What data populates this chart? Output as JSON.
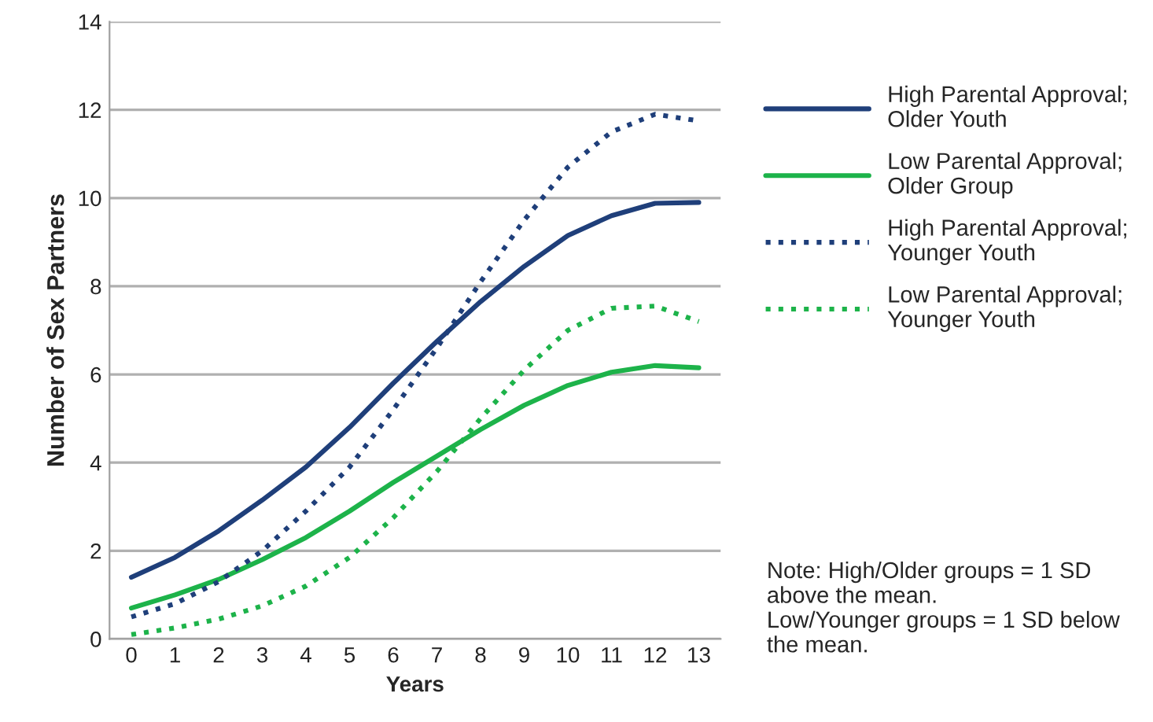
{
  "chart_data": {
    "type": "line",
    "xlabel": "Years",
    "ylabel": "Number of Sex Partners",
    "categories": [
      "0",
      "1",
      "2",
      "3",
      "4",
      "5",
      "6",
      "7",
      "8",
      "9",
      "10",
      "11",
      "12",
      "13"
    ],
    "series": [
      {
        "name": "High Parental Approval; Older Youth",
        "color": "#1f3f7a",
        "line_style": "solid",
        "values": [
          1.4,
          1.85,
          2.45,
          3.15,
          3.9,
          4.8,
          5.8,
          6.75,
          7.65,
          8.45,
          9.15,
          9.6,
          9.88,
          9.9
        ]
      },
      {
        "name": "Low Parental Approval; Older Group",
        "color": "#1db34a",
        "line_style": "solid",
        "values": [
          0.7,
          1.0,
          1.35,
          1.8,
          2.3,
          2.9,
          3.55,
          4.15,
          4.75,
          5.3,
          5.75,
          6.05,
          6.2,
          6.15
        ]
      },
      {
        "name": "High Parental Approval; Younger Youth",
        "color": "#1f3f7a",
        "line_style": "dotted",
        "values": [
          0.5,
          0.8,
          1.3,
          2.0,
          2.9,
          3.9,
          5.2,
          6.6,
          8.1,
          9.5,
          10.7,
          11.5,
          11.9,
          11.75
        ]
      },
      {
        "name": "Low Parental Approval; Younger Youth",
        "color": "#1db34a",
        "line_style": "dotted",
        "values": [
          0.1,
          0.25,
          0.45,
          0.75,
          1.2,
          1.85,
          2.75,
          3.8,
          5.0,
          6.1,
          7.0,
          7.5,
          7.55,
          7.2
        ]
      }
    ],
    "ylim": [
      0,
      14
    ],
    "yticks": [
      0,
      2,
      4,
      6,
      8,
      10,
      12,
      14
    ],
    "grid": "y",
    "legend": "right",
    "annotations": [
      "Note: High/Older groups = 1 SD above the mean.\nLow/Younger groups = 1 SD below the mean."
    ]
  }
}
